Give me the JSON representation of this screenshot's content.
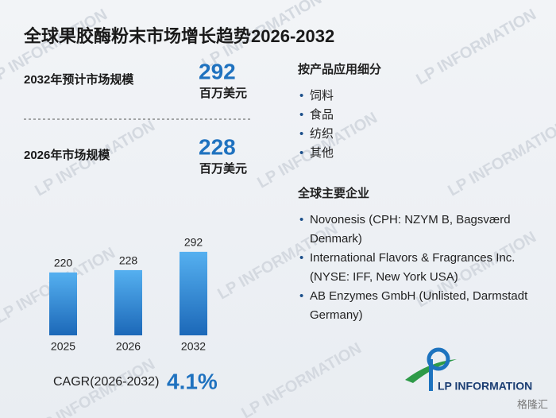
{
  "title": "全球果胶酶粉末市场增长趋势2026-2032",
  "watermark": "LP INFORMATION",
  "stats": [
    {
      "label": "2032年预计市场规模",
      "value": 292,
      "unit": "百万美元"
    },
    {
      "label": "2026年市场规模",
      "value": 228,
      "unit": "百万美元"
    }
  ],
  "segments": {
    "heading": "按产品应用细分",
    "items": [
      "饲料",
      "食品",
      "纺织",
      "其他"
    ]
  },
  "companies": {
    "heading": "全球主要企业",
    "items": [
      "Novonesis (CPH: NZYM B, Bagsværd Denmark)",
      "International Flavors & Fragrances Inc. (NYSE: IFF, New York USA)",
      "AB Enzymes GmbH (Unlisted, Darmstadt Germany)"
    ]
  },
  "chart_data": {
    "type": "bar",
    "categories": [
      "2025",
      "2026",
      "2032"
    ],
    "values": [
      220,
      228,
      292
    ],
    "color": "#2a80d0"
  },
  "cagr": {
    "label": "CAGR(2026-2032)",
    "value": "4.1%"
  },
  "logo": "LP INFORMATION",
  "source_mark": "格隆汇"
}
